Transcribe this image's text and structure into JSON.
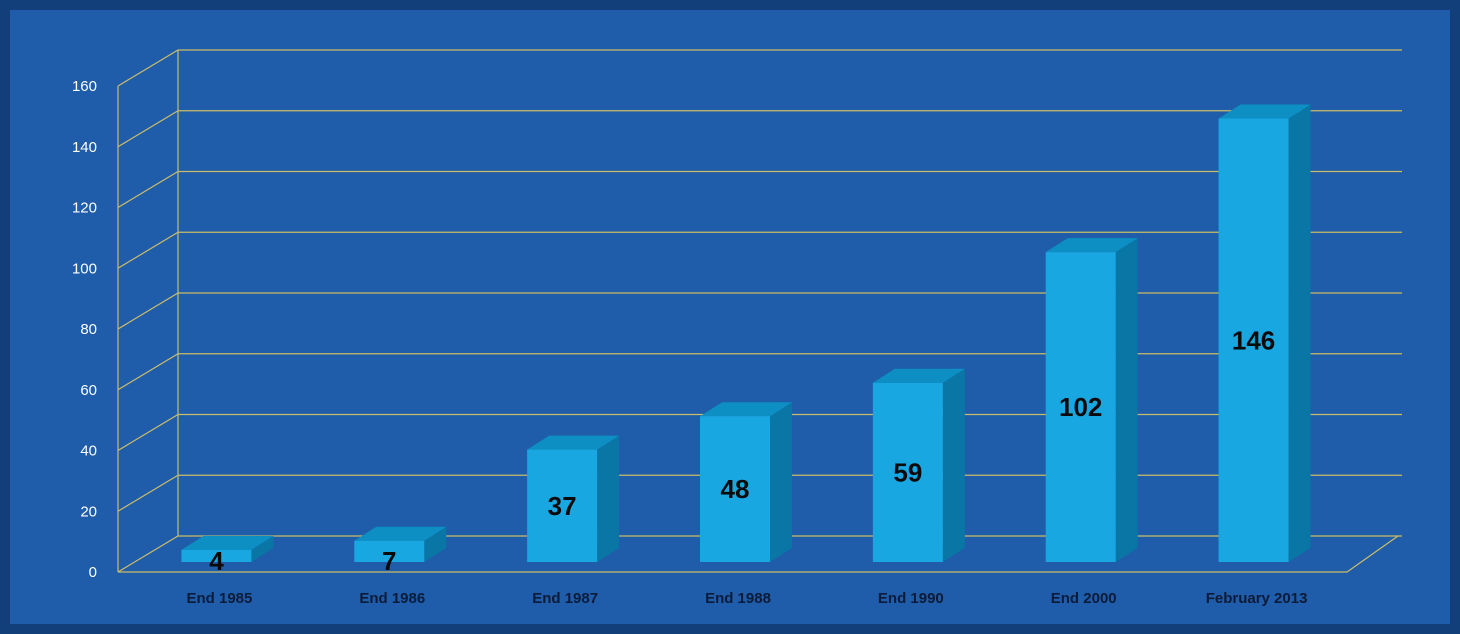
{
  "chart_data": {
    "type": "bar",
    "title": "",
    "xlabel": "",
    "ylabel": "",
    "categories": [
      "End 1985",
      "End 1986",
      "End 1987",
      "End 1988",
      "End 1990",
      "End 2000",
      "February 2013"
    ],
    "values": [
      4,
      7,
      37,
      48,
      59,
      102,
      146
    ],
    "data_labels": [
      "4",
      "7",
      "37",
      "48",
      "59",
      "102",
      "146"
    ],
    "yticks": [
      0,
      20,
      40,
      60,
      80,
      100,
      120,
      140,
      160
    ],
    "ytick_labels": [
      "0",
      "20",
      "40",
      "60",
      "80",
      "100",
      "120",
      "140",
      "160"
    ],
    "ylim": [
      0,
      160
    ],
    "grid": true,
    "legend": "none",
    "style": "3d-bar",
    "colors": {
      "background": "#1f5ca9",
      "frame": "#123f7a",
      "gridline": "#c9bc6a",
      "bar_front": "#19a7e2",
      "bar_side": "#0a76a6",
      "bar_top": "#0d8fc3",
      "category_label": "#0b1c3a",
      "data_label": "#0a0a0a",
      "tick_label": "#ffffff"
    }
  }
}
